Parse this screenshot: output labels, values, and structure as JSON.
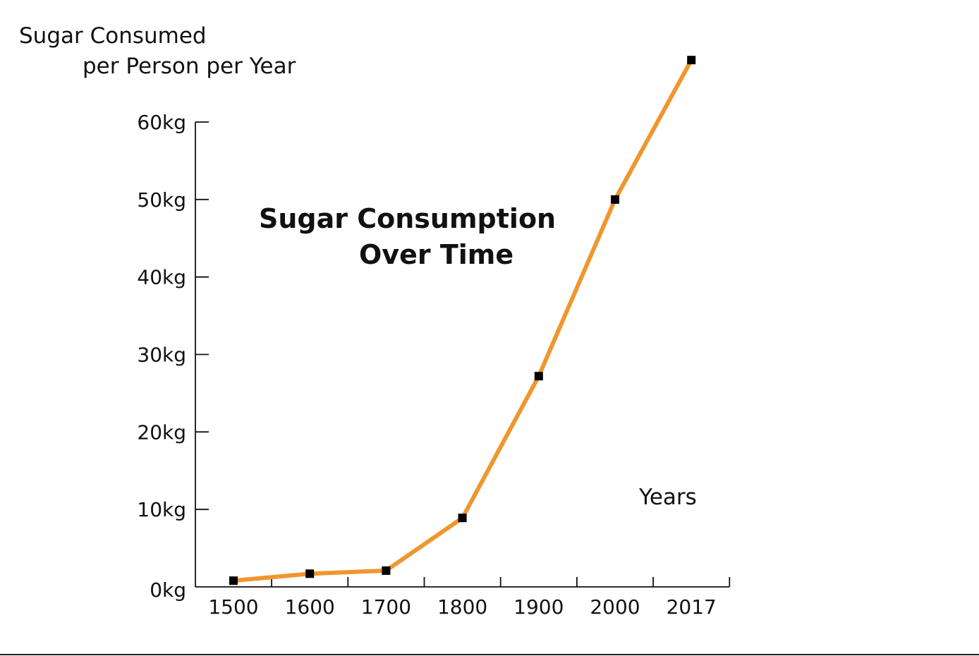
{
  "chart_data": {
    "type": "line",
    "title_lines": [
      "Sugar Consumption",
      "Over Time"
    ],
    "ylabel_lines": [
      "Sugar Consumed",
      "per Person per Year"
    ],
    "xlabel": "Years",
    "categories": [
      "1500",
      "1600",
      "1700",
      "1800",
      "1900",
      "2000",
      "2017"
    ],
    "yticks": [
      "0kg",
      "10kg",
      "20kg",
      "30kg",
      "40kg",
      "50kg",
      "60kg"
    ],
    "ylim": [
      0,
      60
    ],
    "values": [
      0.8,
      1.7,
      2.1,
      8.9,
      27.2,
      50,
      68
    ],
    "line_color": "#f0962e",
    "marker_color": "#000000",
    "grid": false
  }
}
